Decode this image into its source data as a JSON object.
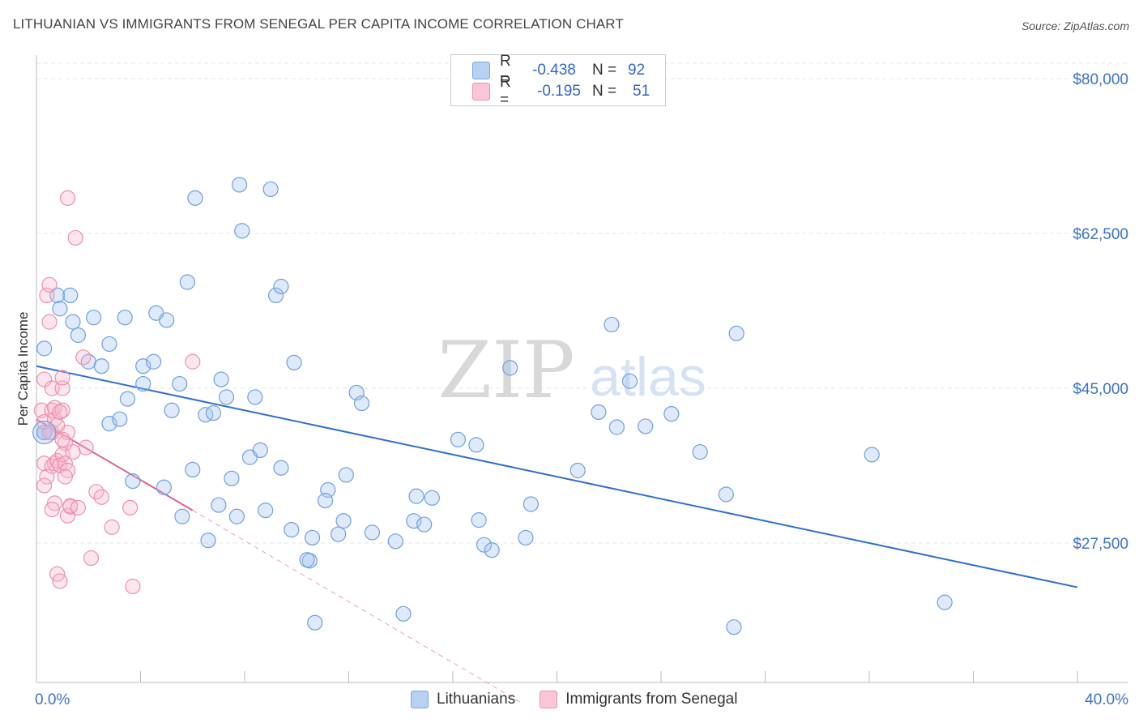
{
  "title": "LITHUANIAN VS IMMIGRANTS FROM SENEGAL PER CAPITA INCOME CORRELATION CHART",
  "source": "Source: ZipAtlas.com",
  "watermark": {
    "zip": "ZIP",
    "atlas": "atlas"
  },
  "legend": {
    "rows": [
      {
        "r_label": "R =",
        "r_value": "-0.438",
        "n_label": "N =",
        "n_value": "92",
        "color": "#7aa7e6",
        "fill": "#b8d0f2"
      },
      {
        "r_label": "R =",
        "r_value": "-0.195",
        "n_label": "N =",
        "n_value": "51",
        "color": "#ee8fb0",
        "fill": "#f8c6d6"
      }
    ]
  },
  "bottom_legend": [
    "Lithuanians",
    "Immigrants from Senegal"
  ],
  "chart_data": {
    "type": "scatter",
    "xlabel": "",
    "ylabel": "Per Capita Income",
    "xlim": [
      0,
      40
    ],
    "ylim": [
      10000,
      85000
    ],
    "x_tick_labels": [
      "0.0%",
      "40.0%"
    ],
    "y_ticks": [
      27500,
      45000,
      62500,
      80000
    ],
    "y_tick_labels": [
      "$27,500",
      "$45,000",
      "$62,500",
      "$80,000"
    ],
    "grid": true,
    "series": [
      {
        "name": "Lithuanians",
        "color": "#6f9fe0",
        "fill": "rgba(160,196,240,0.35)",
        "trend": {
          "x": [
            0,
            40
          ],
          "y": [
            47500,
            22500
          ],
          "color": "#2f6fd0"
        },
        "points": [
          [
            0.3,
            49500
          ],
          [
            0.3,
            40000
          ],
          [
            0.9,
            54000
          ],
          [
            0.8,
            55500
          ],
          [
            1.3,
            55500
          ],
          [
            1.4,
            52500
          ],
          [
            1.6,
            51000
          ],
          [
            2.2,
            53000
          ],
          [
            2.0,
            48000
          ],
          [
            2.5,
            47500
          ],
          [
            2.8,
            50000
          ],
          [
            3.4,
            53000
          ],
          [
            2.8,
            41000
          ],
          [
            3.2,
            41500
          ],
          [
            3.5,
            43800
          ],
          [
            3.7,
            34500
          ],
          [
            4.1,
            45500
          ],
          [
            4.1,
            47500
          ],
          [
            4.5,
            48000
          ],
          [
            4.6,
            53500
          ],
          [
            5.0,
            52700
          ],
          [
            4.9,
            33800
          ],
          [
            5.2,
            42500
          ],
          [
            5.5,
            45500
          ],
          [
            5.6,
            30500
          ],
          [
            5.8,
            57000
          ],
          [
            6.0,
            35800
          ],
          [
            6.1,
            66500
          ],
          [
            6.5,
            42000
          ],
          [
            6.6,
            27800
          ],
          [
            6.8,
            42200
          ],
          [
            7.0,
            31800
          ],
          [
            7.1,
            46000
          ],
          [
            7.3,
            44000
          ],
          [
            7.5,
            34800
          ],
          [
            7.7,
            30500
          ],
          [
            7.8,
            68000
          ],
          [
            7.9,
            62800
          ],
          [
            8.2,
            37200
          ],
          [
            8.4,
            44000
          ],
          [
            8.6,
            38000
          ],
          [
            8.8,
            31200
          ],
          [
            9.0,
            67500
          ],
          [
            9.2,
            55500
          ],
          [
            9.4,
            56500
          ],
          [
            9.4,
            36000
          ],
          [
            9.8,
            29000
          ],
          [
            9.9,
            47900
          ],
          [
            10.5,
            25500
          ],
          [
            10.4,
            25600
          ],
          [
            10.6,
            28100
          ],
          [
            10.7,
            18500
          ],
          [
            11.2,
            33500
          ],
          [
            11.1,
            32300
          ],
          [
            11.6,
            28500
          ],
          [
            11.8,
            30000
          ],
          [
            11.9,
            35200
          ],
          [
            12.3,
            44500
          ],
          [
            12.5,
            43300
          ],
          [
            12.9,
            28700
          ],
          [
            13.8,
            27700
          ],
          [
            14.1,
            19500
          ],
          [
            14.5,
            30000
          ],
          [
            14.6,
            32800
          ],
          [
            14.9,
            29600
          ],
          [
            15.2,
            32600
          ],
          [
            16.2,
            39200
          ],
          [
            16.9,
            38600
          ],
          [
            17.0,
            30100
          ],
          [
            17.2,
            27300
          ],
          [
            17.5,
            26700
          ],
          [
            18.2,
            47300
          ],
          [
            18.8,
            28100
          ],
          [
            19.0,
            31900
          ],
          [
            20.8,
            35700
          ],
          [
            21.6,
            42300
          ],
          [
            22.1,
            52200
          ],
          [
            22.3,
            40600
          ],
          [
            22.8,
            45800
          ],
          [
            23.4,
            40700
          ],
          [
            24.4,
            42100
          ],
          [
            25.5,
            37800
          ],
          [
            26.5,
            33000
          ],
          [
            26.8,
            18000
          ],
          [
            26.9,
            51200
          ],
          [
            32.1,
            37500
          ],
          [
            34.9,
            20800
          ],
          [
            0.3,
            40000
          ]
        ]
      },
      {
        "name": "Immigrants from Senegal",
        "color": "#ee8fb0",
        "fill": "rgba(246,184,204,0.35)",
        "trend": {
          "x": [
            0,
            6
          ],
          "y": [
            41500,
            31200
          ],
          "color": "#e0608e"
        },
        "trend_ext": {
          "x": [
            6,
            18.6
          ],
          "y": [
            31200,
            9500
          ],
          "color": "#e8a0b8"
        },
        "points": [
          [
            0.3,
            46000
          ],
          [
            0.2,
            42500
          ],
          [
            0.3,
            41200
          ],
          [
            0.3,
            36500
          ],
          [
            0.4,
            35000
          ],
          [
            0.3,
            34000
          ],
          [
            0.4,
            55500
          ],
          [
            0.5,
            56700
          ],
          [
            0.5,
            52500
          ],
          [
            0.6,
            45000
          ],
          [
            0.6,
            42500
          ],
          [
            0.7,
            42800
          ],
          [
            0.7,
            41500
          ],
          [
            0.6,
            40000
          ],
          [
            0.7,
            36500
          ],
          [
            0.6,
            36200
          ],
          [
            0.7,
            32000
          ],
          [
            0.6,
            31300
          ],
          [
            0.8,
            36800
          ],
          [
            0.9,
            36300
          ],
          [
            0.8,
            24000
          ],
          [
            0.9,
            23200
          ],
          [
            1.0,
            45000
          ],
          [
            1.0,
            46200
          ],
          [
            1.0,
            42500
          ],
          [
            1.2,
            40000
          ],
          [
            1.1,
            38800
          ],
          [
            1.0,
            37500
          ],
          [
            1.1,
            36500
          ],
          [
            1.2,
            35700
          ],
          [
            1.1,
            35000
          ],
          [
            1.3,
            31600
          ],
          [
            1.2,
            30600
          ],
          [
            1.3,
            31700
          ],
          [
            1.6,
            31500
          ],
          [
            1.5,
            62000
          ],
          [
            1.2,
            66500
          ],
          [
            1.8,
            48500
          ],
          [
            1.9,
            38300
          ],
          [
            2.1,
            25800
          ],
          [
            2.3,
            33300
          ],
          [
            2.5,
            32700
          ],
          [
            2.9,
            29300
          ],
          [
            3.6,
            31500
          ],
          [
            3.7,
            22600
          ],
          [
            6.0,
            48000
          ],
          [
            0.8,
            40800
          ],
          [
            0.5,
            40000
          ],
          [
            1.0,
            39200
          ],
          [
            1.4,
            37800
          ],
          [
            0.9,
            42300
          ]
        ]
      }
    ],
    "big_point": {
      "series": "Lithuanians",
      "x": 0.3,
      "y": 40000
    }
  }
}
